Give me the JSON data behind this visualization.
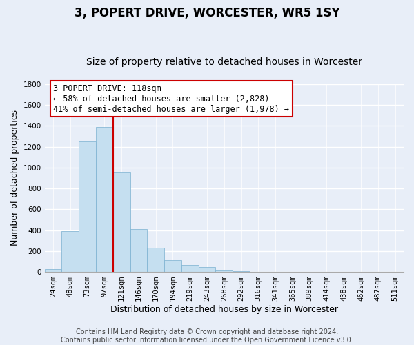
{
  "title": "3, POPERT DRIVE, WORCESTER, WR5 1SY",
  "subtitle": "Size of property relative to detached houses in Worcester",
  "xlabel": "Distribution of detached houses by size in Worcester",
  "ylabel": "Number of detached properties",
  "bar_labels": [
    "24sqm",
    "48sqm",
    "73sqm",
    "97sqm",
    "121sqm",
    "146sqm",
    "170sqm",
    "194sqm",
    "219sqm",
    "243sqm",
    "268sqm",
    "292sqm",
    "316sqm",
    "341sqm",
    "365sqm",
    "389sqm",
    "414sqm",
    "438sqm",
    "462sqm",
    "487sqm",
    "511sqm"
  ],
  "bar_values": [
    25,
    390,
    1250,
    1390,
    950,
    410,
    230,
    110,
    65,
    48,
    15,
    5,
    2,
    0,
    0,
    0,
    0,
    0,
    0,
    0,
    0
  ],
  "bar_color": "#c5dff0",
  "bar_edgecolor": "#7ab0d0",
  "vline_color": "#cc0000",
  "vline_x_index": 3.5,
  "annotation_line1": "3 POPERT DRIVE: 118sqm",
  "annotation_line2": "← 58% of detached houses are smaller (2,828)",
  "annotation_line3": "41% of semi-detached houses are larger (1,978) →",
  "annotation_box_facecolor": "#ffffff",
  "annotation_box_edgecolor": "#cc0000",
  "ylim": [
    0,
    1800
  ],
  "yticks": [
    0,
    200,
    400,
    600,
    800,
    1000,
    1200,
    1400,
    1600,
    1800
  ],
  "bg_color": "#e8eef8",
  "grid_color": "#ffffff",
  "title_fontsize": 12,
  "subtitle_fontsize": 10,
  "axis_label_fontsize": 9,
  "tick_fontsize": 7.5,
  "annotation_fontsize": 8.5,
  "footer_fontsize": 7,
  "footer_line1": "Contains HM Land Registry data © Crown copyright and database right 2024.",
  "footer_line2": "Contains public sector information licensed under the Open Government Licence v3.0."
}
